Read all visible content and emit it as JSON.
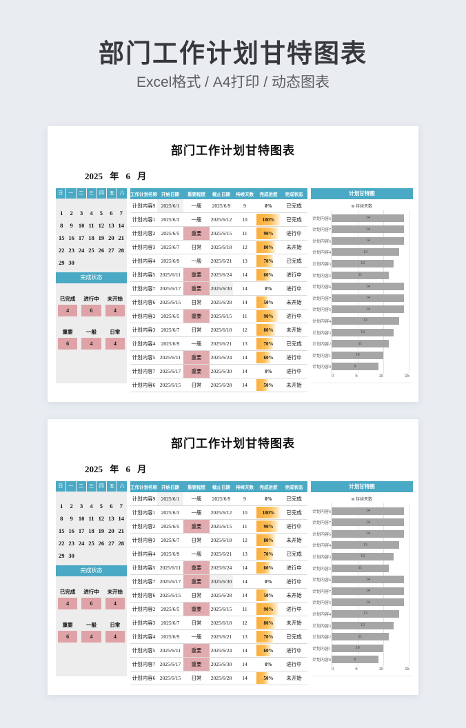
{
  "header": {
    "title": "部门工作计划甘特图表",
    "subtitle": "Excel格式 / A4打印 / 动态图表"
  },
  "colors": {
    "accent_teal": "#4AA9C4",
    "pink_highlight": "#DFA2A6",
    "progress_orange": "#FBAD3B",
    "gantt_bar_gray": "#A6A6A6",
    "page_background": "#E9EDF2"
  },
  "panel": {
    "title": "部门工作计划甘特图表",
    "date_text": "2025 年 6 月",
    "calendar": {
      "weekdays": [
        "日",
        "一",
        "二",
        "三",
        "四",
        "五",
        "六"
      ],
      "days": [
        1,
        2,
        3,
        4,
        5,
        6,
        7,
        8,
        9,
        10,
        11,
        12,
        13,
        14,
        15,
        16,
        17,
        18,
        19,
        20,
        21,
        22,
        23,
        24,
        25,
        26,
        27,
        28,
        29,
        30
      ]
    },
    "summary": {
      "header": "完成状态",
      "groups": [
        {
          "labels": [
            "已完成",
            "进行中",
            "未开始"
          ],
          "values": [
            "4",
            "6",
            "4"
          ]
        },
        {
          "labels": [
            "重要",
            "一般",
            "日常"
          ],
          "values": [
            "6",
            "4",
            "4"
          ]
        }
      ]
    },
    "table": {
      "headers": [
        "工作计划名称",
        "开始日期",
        "重要程度",
        "截止日期",
        "持续天数",
        "完成进度",
        "完成状态"
      ],
      "rows": [
        {
          "name": "计划内容9",
          "start": "2025/6/1",
          "priority": "一般",
          "due": "2025/6/9",
          "days": "9",
          "progress": "0%",
          "status": "已完成",
          "highlight": "start"
        },
        {
          "name": "计划内容1",
          "start": "2025/6/3",
          "priority": "一般",
          "due": "2025/6/12",
          "days": "10",
          "progress": "100%",
          "status": "已完成",
          "highlight": ""
        },
        {
          "name": "计划内容2",
          "start": "2025/6/5",
          "priority": "重要",
          "due": "2025/6/15",
          "days": "11",
          "progress": "90%",
          "status": "进行中",
          "highlight": ""
        },
        {
          "name": "计划内容3",
          "start": "2025/6/7",
          "priority": "日常",
          "due": "2025/6/18",
          "days": "12",
          "progress": "80%",
          "status": "未开始",
          "highlight": ""
        },
        {
          "name": "计划内容4",
          "start": "2025/6/9",
          "priority": "一般",
          "due": "2025/6/21",
          "days": "13",
          "progress": "70%",
          "status": "已完成",
          "highlight": ""
        },
        {
          "name": "计划内容5",
          "start": "2025/6/11",
          "priority": "重要",
          "due": "2025/6/24",
          "days": "14",
          "progress": "60%",
          "status": "进行中",
          "highlight": ""
        },
        {
          "name": "计划内容7",
          "start": "2025/6/17",
          "priority": "重要",
          "due": "2025/6/30",
          "days": "14",
          "progress": "0%",
          "status": "进行中",
          "highlight": "due"
        },
        {
          "name": "计划内容6",
          "start": "2025/6/15",
          "priority": "日常",
          "due": "2025/6/28",
          "days": "14",
          "progress": "50%",
          "status": "未开始",
          "highlight": ""
        },
        {
          "name": "计划内容2",
          "start": "2025/6/5",
          "priority": "重要",
          "due": "2025/6/15",
          "days": "11",
          "progress": "90%",
          "status": "进行中",
          "highlight": ""
        },
        {
          "name": "计划内容3",
          "start": "2025/6/7",
          "priority": "日常",
          "due": "2025/6/18",
          "days": "12",
          "progress": "80%",
          "status": "未开始",
          "highlight": ""
        },
        {
          "name": "计划内容4",
          "start": "2025/6/9",
          "priority": "一般",
          "due": "2025/6/21",
          "days": "13",
          "progress": "70%",
          "status": "已完成",
          "highlight": ""
        },
        {
          "name": "计划内容5",
          "start": "2025/6/11",
          "priority": "重要",
          "due": "2025/6/24",
          "days": "14",
          "progress": "60%",
          "status": "进行中",
          "highlight": ""
        },
        {
          "name": "计划内容7",
          "start": "2025/6/17",
          "priority": "重要",
          "due": "2025/6/30",
          "days": "14",
          "progress": "0%",
          "status": "进行中",
          "highlight": ""
        },
        {
          "name": "计划内容6",
          "start": "2025/6/15",
          "priority": "日常",
          "due": "2025/6/28",
          "days": "14",
          "progress": "50%",
          "status": "未开始",
          "highlight": ""
        }
      ]
    },
    "chart": {
      "title": "计划甘特图",
      "legend": "持续天数",
      "xticks": [
        "0",
        "5",
        "10",
        "15"
      ]
    }
  },
  "chart_data": {
    "type": "bar",
    "orientation": "horizontal",
    "title": "计划甘特图",
    "legend": [
      "持续天数"
    ],
    "categories": [
      "计划内容6",
      "计划内容7",
      "计划内容5",
      "计划内容4",
      "计划内容3",
      "计划内容2",
      "计划内容6",
      "计划内容7",
      "计划内容5",
      "计划内容4",
      "计划内容3",
      "计划内容2",
      "计划内容1",
      "计划内容9"
    ],
    "values": [
      14,
      14,
      14,
      13,
      12,
      11,
      14,
      14,
      14,
      13,
      12,
      11,
      10,
      9
    ],
    "xlim": [
      0,
      15
    ],
    "xticks": [
      0,
      5,
      10,
      15
    ],
    "grid": true,
    "legend_position": "top",
    "bar_color": "#A6A6A6"
  }
}
